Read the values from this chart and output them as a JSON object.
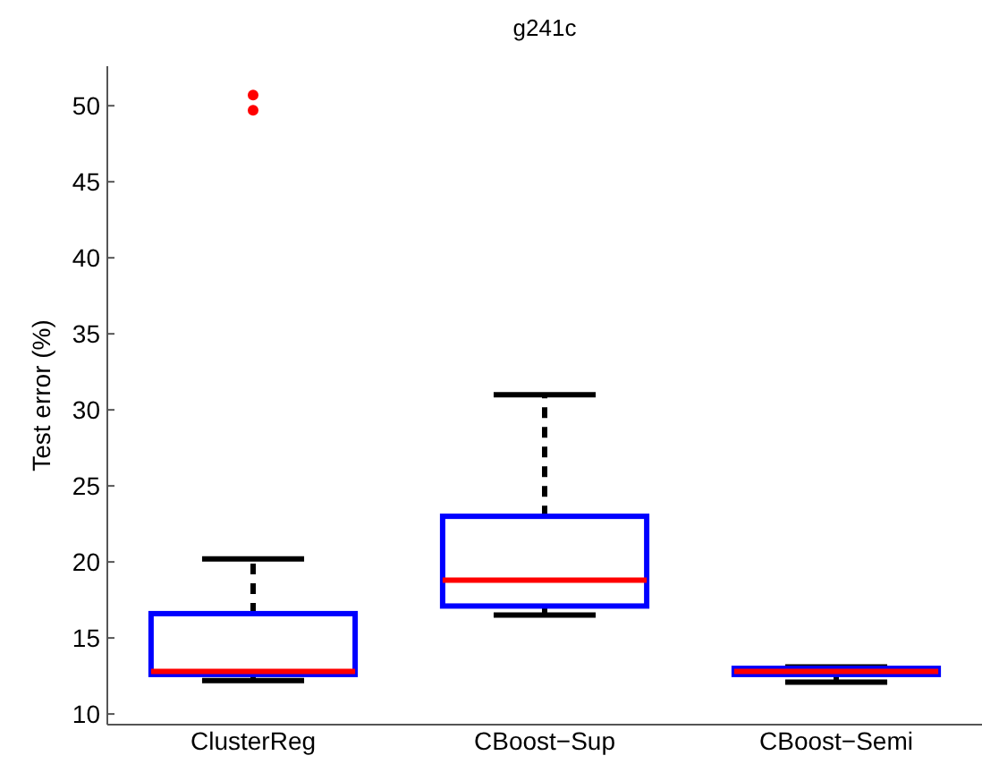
{
  "chart_data": {
    "type": "box",
    "title": "g241c",
    "ylabel": "Test error (%)",
    "categories": [
      "ClusterReg",
      "CBoost−Sup",
      "CBoost−Semi"
    ],
    "series": [
      {
        "color": "#0000ff",
        "boxes": [
          {
            "low": 12.2,
            "q1": 12.6,
            "median": 12.8,
            "q3": 16.6,
            "high": 20.2,
            "outliers": [
              50.7,
              49.7
            ]
          },
          {
            "low": 16.5,
            "q1": 17.1,
            "median": 18.8,
            "q3": 23,
            "high": 31
          },
          {
            "low": 12.1,
            "q1": 12.6,
            "median": 12.8,
            "q3": 13,
            "high": 13.1
          }
        ]
      }
    ],
    "ylim": [
      9.3,
      52.6
    ],
    "yticks": [
      10,
      15,
      20,
      25,
      30,
      35,
      40,
      45,
      50
    ],
    "grid": false
  }
}
